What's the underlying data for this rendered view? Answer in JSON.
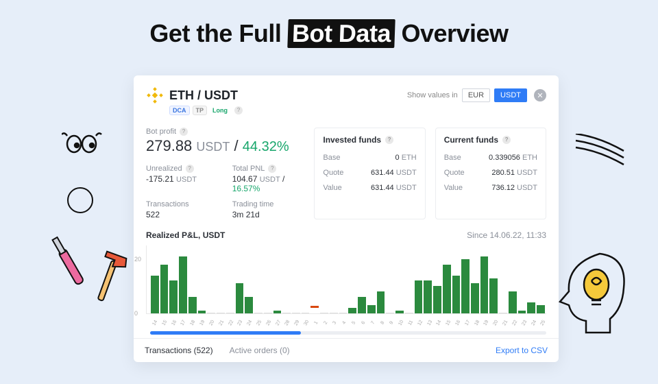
{
  "headline": {
    "prefix": "Get the Full ",
    "highlight": "Bot Data",
    "suffix": " Overview"
  },
  "header": {
    "pair": "ETH / USDT",
    "badges": {
      "dca": "DCA",
      "tp": "TP",
      "direction": "Long"
    },
    "show_values_label": "Show values in",
    "currencies": {
      "eur": "EUR",
      "usdt": "USDT",
      "active": "usdt"
    }
  },
  "botProfit": {
    "label": "Bot profit",
    "value": "279.88",
    "unit": "USDT",
    "pct": "44.32%",
    "pct_color": "#17a66b"
  },
  "stats": {
    "unrealized": {
      "label": "Unrealized",
      "value": "-175.21",
      "unit": "USDT"
    },
    "totalPnl": {
      "label": "Total PNL",
      "value": "104.67",
      "unit": "USDT",
      "pct": "16.57%"
    },
    "transactions": {
      "label": "Transactions",
      "value": "522"
    },
    "tradingTime": {
      "label": "Trading time",
      "value": "3m 21d"
    }
  },
  "invested": {
    "title": "Invested funds",
    "rows": [
      {
        "label": "Base",
        "value": "0",
        "unit": "ETH"
      },
      {
        "label": "Quote",
        "value": "631.44",
        "unit": "USDT"
      },
      {
        "label": "Value",
        "value": "631.44",
        "unit": "USDT"
      }
    ]
  },
  "current": {
    "title": "Current funds",
    "rows": [
      {
        "label": "Base",
        "value": "0.339056",
        "unit": "ETH"
      },
      {
        "label": "Quote",
        "value": "280.51",
        "unit": "USDT"
      },
      {
        "label": "Value",
        "value": "736.12",
        "unit": "USDT"
      }
    ]
  },
  "chart": {
    "title": "Realized P&L, USDT",
    "since": "Since 14.06.22, 11:33",
    "type": "bar",
    "ylim": [
      0,
      25
    ],
    "yticks": [
      0,
      20
    ],
    "bar_color": "#2b8a3e",
    "neg_color": "#d9480f",
    "grid_color": "#e8e8e8",
    "background_color": "#ffffff",
    "values": [
      14,
      18,
      12,
      21,
      6,
      1,
      0,
      0,
      0,
      11,
      6,
      0,
      0,
      1,
      0,
      0,
      0,
      -1,
      0,
      0,
      0,
      2,
      6,
      3,
      8,
      0,
      1,
      0,
      12,
      12,
      10,
      18,
      14,
      20,
      11,
      21,
      13,
      0,
      8,
      1,
      4,
      3
    ],
    "xlabels": [
      "14",
      "15",
      "16",
      "17",
      "18",
      "19",
      "20",
      "21",
      "22",
      "23",
      "24",
      "25",
      "26",
      "27",
      "28",
      "29",
      "30",
      "1",
      "2",
      "3",
      "4",
      "5",
      "6",
      "7",
      "8",
      "9",
      "10",
      "11",
      "12",
      "13",
      "14",
      "15",
      "16",
      "17",
      "18",
      "19",
      "20",
      "21",
      "22",
      "23",
      "24",
      "25"
    ],
    "scrub_range_pct": 38
  },
  "tabs": {
    "transactions": "Transactions (522)",
    "active_orders": "Active orders (0)",
    "export": "Export to CSV"
  },
  "colors": {
    "page_bg": "#e6eef9",
    "accent_blue": "#2f7cf6",
    "green": "#17a66b"
  }
}
